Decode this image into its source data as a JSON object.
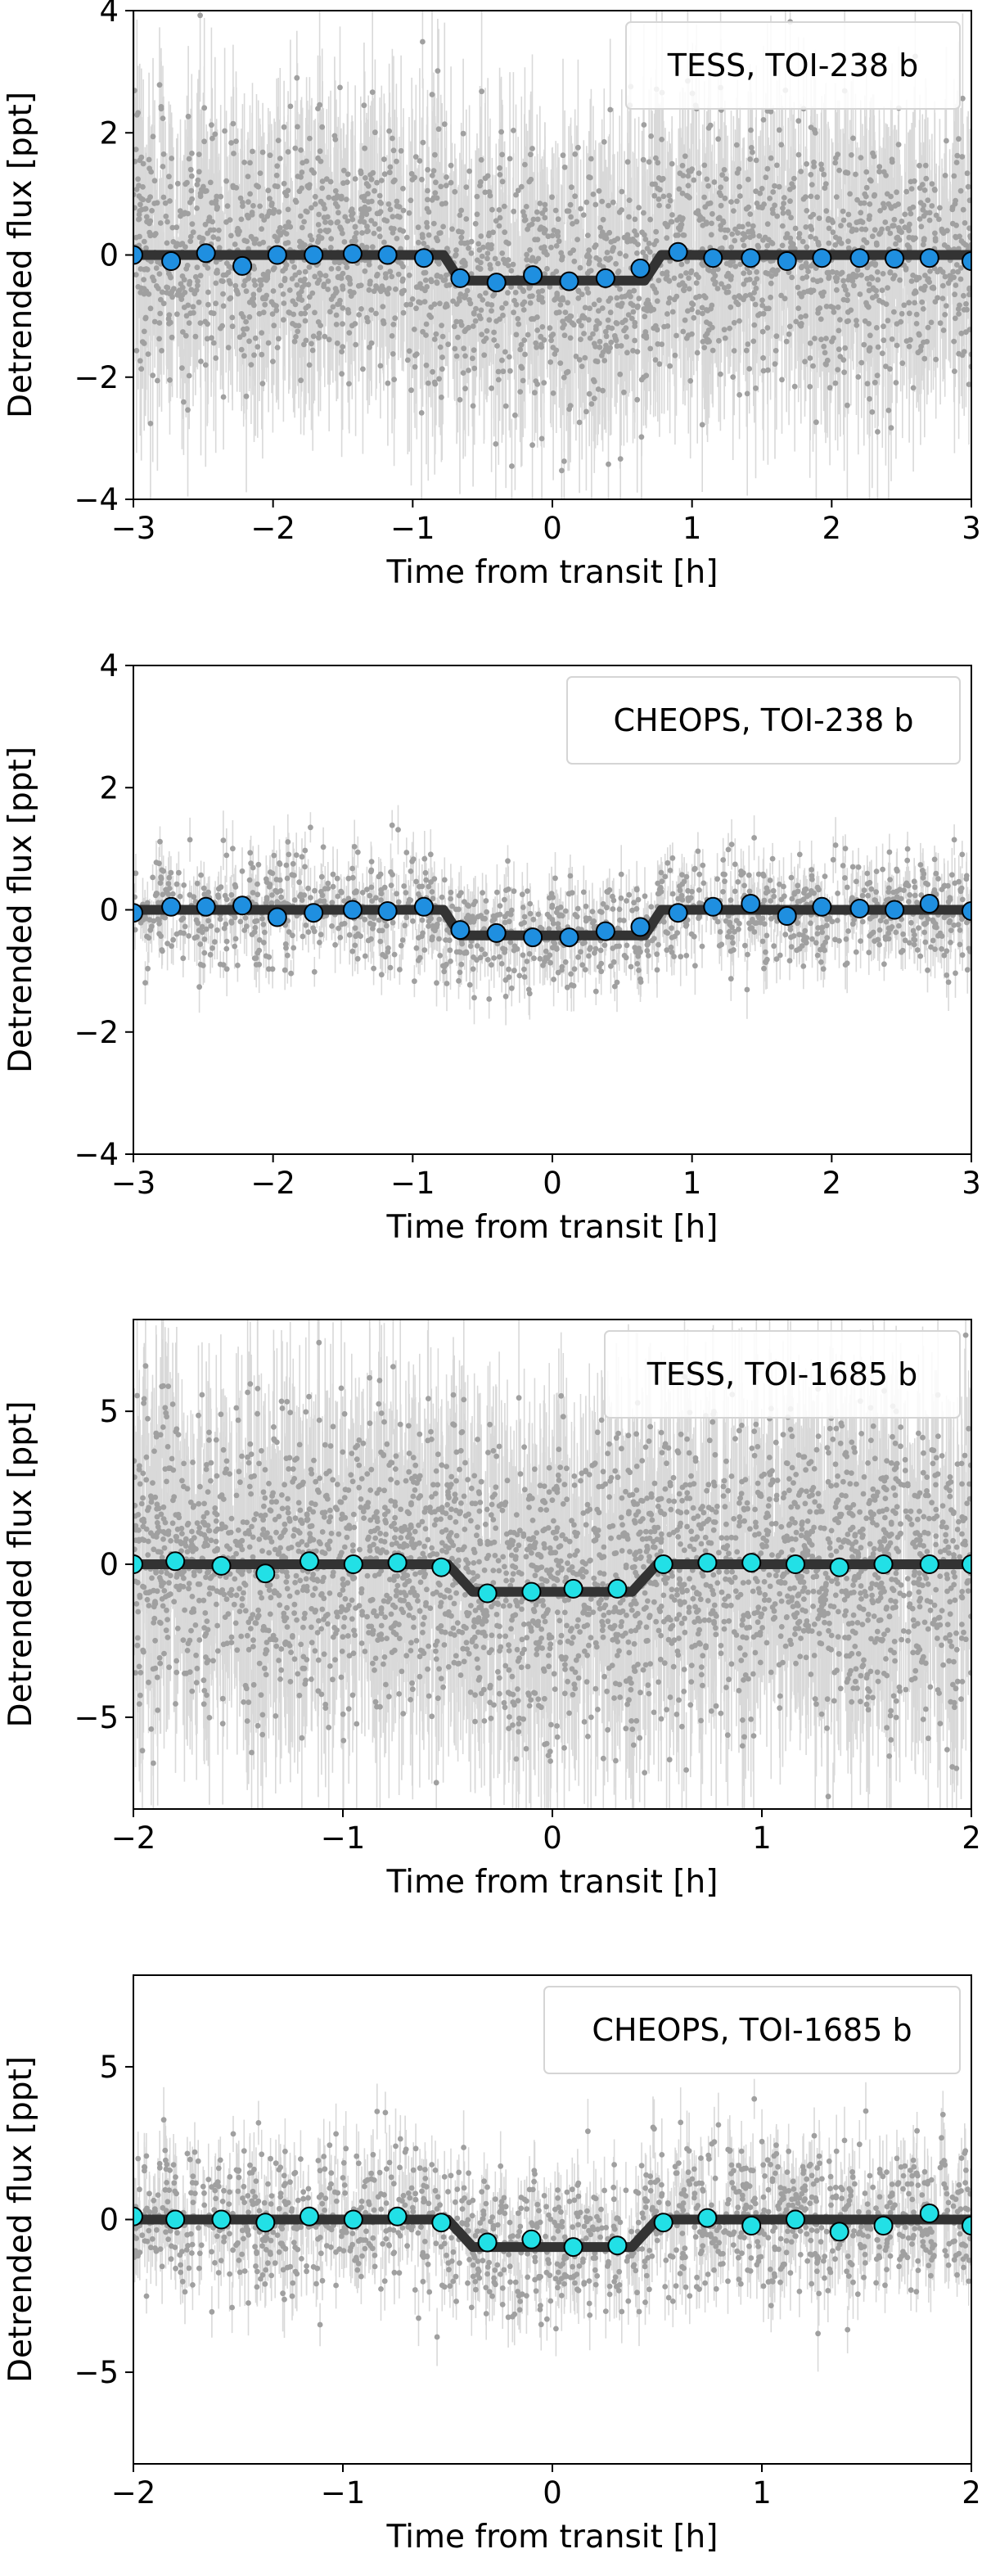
{
  "figure": {
    "background": "#ffffff"
  },
  "chart_data": [
    {
      "type": "scatter",
      "legend": "TESS, TOI-238 b",
      "legend_position": "top-right",
      "xlabel": "Time from transit [h]",
      "ylabel": "Detrended flux [ppt]",
      "xlim": [
        -3,
        3
      ],
      "ylim": [
        -4,
        4
      ],
      "xticks": [
        -3,
        -2,
        -1,
        0,
        1,
        2,
        3
      ],
      "xtick_labels": [
        "−3",
        "−2",
        "−1",
        "0",
        "1",
        "2",
        "3"
      ],
      "yticks": [
        -4,
        -2,
        0,
        2,
        4
      ],
      "ytick_labels": [
        "−4",
        "−2",
        "0",
        "2",
        "4"
      ],
      "grid": false,
      "series": [
        {
          "kind": "raw",
          "color": "#a0a0a0",
          "errorbar_color": "#d9d9d9",
          "n_points": 2600,
          "scatter_std": 1.0,
          "error_half_height": 1.2
        },
        {
          "kind": "model",
          "color": "#333333",
          "t14_half": 0.78,
          "ingress": 0.12,
          "depth": -0.42
        },
        {
          "kind": "binned",
          "color": "#1f8fe0",
          "edgecolor": "#000000",
          "x": [
            -3.0,
            -2.73,
            -2.48,
            -2.22,
            -1.97,
            -1.71,
            -1.43,
            -1.18,
            -0.92,
            -0.66,
            -0.4,
            -0.14,
            0.12,
            0.38,
            0.63,
            0.9,
            1.15,
            1.42,
            1.68,
            1.93,
            2.2,
            2.45,
            2.7,
            3.0
          ],
          "y": [
            0.0,
            -0.1,
            0.03,
            -0.18,
            0.0,
            0.0,
            0.02,
            0.0,
            -0.05,
            -0.38,
            -0.45,
            -0.33,
            -0.43,
            -0.38,
            -0.22,
            0.05,
            -0.05,
            -0.05,
            -0.1,
            -0.05,
            -0.05,
            -0.06,
            -0.05,
            -0.1
          ]
        }
      ]
    },
    {
      "type": "scatter",
      "legend": "CHEOPS, TOI-238 b",
      "legend_position": "top-right",
      "xlabel": "Time from transit [h]",
      "ylabel": "Detrended flux [ppt]",
      "xlim": [
        -3,
        3
      ],
      "ylim": [
        -4,
        4
      ],
      "xticks": [
        -3,
        -2,
        -1,
        0,
        1,
        2,
        3
      ],
      "xtick_labels": [
        "−3",
        "−2",
        "−1",
        "0",
        "1",
        "2",
        "3"
      ],
      "yticks": [
        -4,
        -2,
        0,
        2,
        4
      ],
      "ytick_labels": [
        "−4",
        "−2",
        "0",
        "2",
        "4"
      ],
      "grid": false,
      "series": [
        {
          "kind": "raw",
          "color": "#a0a0a0",
          "errorbar_color": "#d9d9d9",
          "n_points": 1300,
          "scatter_std": 0.45,
          "error_half_height": 0.35
        },
        {
          "kind": "model",
          "color": "#333333",
          "t14_half": 0.78,
          "ingress": 0.12,
          "depth": -0.42
        },
        {
          "kind": "binned",
          "color": "#1f8fe0",
          "edgecolor": "#000000",
          "x": [
            -3.0,
            -2.73,
            -2.48,
            -2.22,
            -1.97,
            -1.71,
            -1.43,
            -1.18,
            -0.92,
            -0.66,
            -0.4,
            -0.14,
            0.12,
            0.38,
            0.63,
            0.9,
            1.15,
            1.42,
            1.68,
            1.93,
            2.2,
            2.45,
            2.7,
            3.0
          ],
          "y": [
            -0.05,
            0.05,
            0.05,
            0.07,
            -0.12,
            -0.05,
            0.0,
            -0.02,
            0.05,
            -0.33,
            -0.38,
            -0.45,
            -0.45,
            -0.35,
            -0.28,
            -0.05,
            0.05,
            0.1,
            -0.1,
            0.05,
            0.02,
            0.0,
            0.1,
            -0.02
          ]
        }
      ]
    },
    {
      "type": "scatter",
      "legend": "TESS, TOI-1685 b",
      "legend_position": "top-right",
      "xlabel": "Time from transit [h]",
      "ylabel": "Detrended flux [ppt]",
      "xlim": [
        -2,
        2
      ],
      "ylim": [
        -8,
        8
      ],
      "xticks": [
        -2,
        -1,
        0,
        1,
        2
      ],
      "xtick_labels": [
        "−2",
        "−1",
        "0",
        "1",
        "2"
      ],
      "yticks": [
        -5,
        0,
        5
      ],
      "ytick_labels": [
        "−5",
        "0",
        "5"
      ],
      "grid": false,
      "series": [
        {
          "kind": "raw",
          "color": "#a0a0a0",
          "errorbar_color": "#d9d9d9",
          "n_points": 3200,
          "scatter_std": 2.4,
          "error_half_height": 2.6
        },
        {
          "kind": "model",
          "color": "#333333",
          "t14_half": 0.5,
          "ingress": 0.12,
          "depth": -0.9
        },
        {
          "kind": "binned",
          "color": "#22e0e6",
          "edgecolor": "#000000",
          "x": [
            -2.0,
            -1.8,
            -1.58,
            -1.37,
            -1.16,
            -0.95,
            -0.74,
            -0.53,
            -0.31,
            -0.1,
            0.1,
            0.31,
            0.53,
            0.74,
            0.95,
            1.16,
            1.37,
            1.58,
            1.8,
            2.0
          ],
          "y": [
            0.0,
            0.1,
            -0.05,
            -0.3,
            0.1,
            0.0,
            0.05,
            -0.1,
            -0.95,
            -0.9,
            -0.8,
            -0.8,
            0.0,
            0.05,
            0.05,
            0.0,
            -0.1,
            0.0,
            0.0,
            0.0
          ]
        }
      ]
    },
    {
      "type": "scatter",
      "legend": "CHEOPS, TOI-1685 b",
      "legend_position": "top-right",
      "xlabel": "Time from transit [h]",
      "ylabel": "Detrended flux [ppt]",
      "xlim": [
        -2,
        2
      ],
      "ylim": [
        -8,
        8
      ],
      "xticks": [
        -2,
        -1,
        0,
        1,
        2
      ],
      "xtick_labels": [
        "−2",
        "−1",
        "0",
        "1",
        "2"
      ],
      "yticks": [
        -5,
        0,
        5
      ],
      "ytick_labels": [
        "−5",
        "0",
        "5"
      ],
      "grid": false,
      "series": [
        {
          "kind": "raw",
          "color": "#a0a0a0",
          "errorbar_color": "#d9d9d9",
          "n_points": 1500,
          "scatter_std": 1.2,
          "error_half_height": 0.9
        },
        {
          "kind": "model",
          "color": "#333333",
          "t14_half": 0.5,
          "ingress": 0.12,
          "depth": -0.9
        },
        {
          "kind": "binned",
          "color": "#22e0e6",
          "edgecolor": "#000000",
          "x": [
            -2.0,
            -1.8,
            -1.58,
            -1.37,
            -1.16,
            -0.95,
            -0.74,
            -0.53,
            -0.31,
            -0.1,
            0.1,
            0.31,
            0.53,
            0.74,
            0.95,
            1.16,
            1.37,
            1.58,
            1.8,
            2.0
          ],
          "y": [
            0.1,
            0.0,
            0.0,
            -0.1,
            0.1,
            0.0,
            0.1,
            -0.1,
            -0.75,
            -0.65,
            -0.9,
            -0.85,
            -0.1,
            0.05,
            -0.2,
            0.0,
            -0.4,
            -0.2,
            0.2,
            -0.2
          ]
        }
      ]
    }
  ]
}
